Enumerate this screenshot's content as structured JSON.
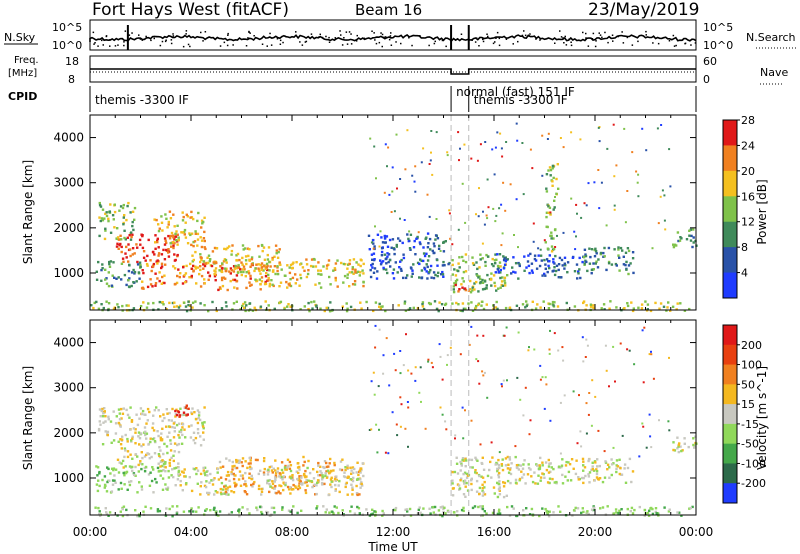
{
  "header": {
    "station": "Fort Hays West (fitACF)",
    "beam": "Beam 16",
    "date": "23/May/2019"
  },
  "top_panels": {
    "nsky_label": "N.Sky",
    "nsky_tick_top": "10^5",
    "nsky_tick_bottom": "10^0",
    "nsearch_label": "N.Search",
    "freq_label_line1": "Freq.",
    "freq_label_line2": "[MHz]",
    "freq_tick_top": "18",
    "freq_tick_bottom": "8",
    "nave_tick_top": "60",
    "nave_tick_bottom": "0",
    "nave_label": "Nave",
    "cpid_label": "CPID",
    "cpid_segments": [
      {
        "label": "themis -3300 IF",
        "start_h": 0.0,
        "end_h": 14.3
      },
      {
        "label": "normal (fast) 151 IF",
        "start_h": 14.3,
        "end_h": 15.0
      },
      {
        "label": "themis -3300 IF",
        "start_h": 15.0,
        "end_h": 24.0
      }
    ]
  },
  "chart_data": [
    {
      "type": "heatmap",
      "name": "power",
      "ylabel": "Slant Range [km]",
      "xlabel": "Time UT",
      "xlim": [
        0,
        24
      ],
      "ylim": [
        180,
        4500
      ],
      "yticks": [
        1000,
        2000,
        3000,
        4000
      ],
      "xticks": [
        "00:00",
        "04:00",
        "08:00",
        "12:00",
        "16:00",
        "20:00",
        "00:00"
      ],
      "colorbar_label": "Power [dB]",
      "colorbar_ticks": [
        "4",
        "8",
        "12",
        "16",
        "20",
        "24",
        "28"
      ],
      "colorbar_colors": [
        "#1f3cff",
        "#2952a8",
        "#3f8a5a",
        "#7fc24a",
        "#f4c020",
        "#f08020",
        "#e01818"
      ],
      "regions": [
        {
          "t0": 0.3,
          "t1": 1.8,
          "r0": 1750,
          "r1": 2600,
          "level": 3
        },
        {
          "t0": 1.0,
          "t1": 3.5,
          "r0": 1250,
          "r1": 1900,
          "level": 6
        },
        {
          "t0": 2.5,
          "t1": 4.5,
          "r0": 1600,
          "r1": 2400,
          "level": 4
        },
        {
          "t0": 0.2,
          "t1": 2.0,
          "r0": 700,
          "r1": 1300,
          "level": 2
        },
        {
          "t0": 2.0,
          "t1": 7.0,
          "r0": 650,
          "r1": 1250,
          "level": 5
        },
        {
          "t0": 4.0,
          "t1": 7.5,
          "r0": 1000,
          "r1": 1650,
          "level": 4
        },
        {
          "t0": 6.5,
          "t1": 10.8,
          "r0": 700,
          "r1": 1350,
          "level": 4
        },
        {
          "t0": 11.0,
          "t1": 14.2,
          "r0": 900,
          "r1": 1900,
          "level": 1
        },
        {
          "t0": 14.3,
          "t1": 16.5,
          "r0": 600,
          "r1": 1450,
          "level": 3
        },
        {
          "t0": 14.4,
          "t1": 15.0,
          "r0": 500,
          "r1": 800,
          "level": 5
        },
        {
          "t0": 16.0,
          "t1": 19.5,
          "r0": 900,
          "r1": 1450,
          "level": 1
        },
        {
          "t0": 19.5,
          "t1": 21.5,
          "r0": 1000,
          "r1": 1600,
          "level": 2
        },
        {
          "t0": 23.0,
          "t1": 24.0,
          "r0": 1600,
          "r1": 2000,
          "level": 2
        },
        {
          "t0": 0.0,
          "t1": 24.0,
          "r0": 180,
          "r1": 400,
          "level": 3
        },
        {
          "t0": 18.0,
          "t1": 18.5,
          "r0": 1500,
          "r1": 3500,
          "level": 3
        }
      ]
    },
    {
      "type": "heatmap",
      "name": "velocity",
      "ylabel": "Slant Range [km]",
      "xlabel": "Time UT",
      "xlim": [
        0,
        24
      ],
      "ylim": [
        180,
        4500
      ],
      "yticks": [
        1000,
        2000,
        3000,
        4000
      ],
      "xticks": [
        "00:00",
        "04:00",
        "08:00",
        "12:00",
        "16:00",
        "20:00",
        "00:00"
      ],
      "colorbar_label": "Velocity [m s^-1]",
      "colorbar_ticks": [
        "200",
        "100",
        "50",
        "15",
        "-15",
        "-50",
        "-100",
        "-200"
      ],
      "colorbar_colors": [
        "#1f3cff",
        "#2c6a4a",
        "#44a84a",
        "#90d85a",
        "#c8c8c0",
        "#f4b820",
        "#f08020",
        "#e84010",
        "#e01818"
      ],
      "regions": [
        {
          "t0": 0.3,
          "t1": 4.5,
          "r0": 1750,
          "r1": 2600,
          "level": 4
        },
        {
          "t0": 1.0,
          "t1": 3.5,
          "r0": 1250,
          "r1": 1900,
          "level": 4
        },
        {
          "t0": 0.2,
          "t1": 3.0,
          "r0": 700,
          "r1": 1300,
          "level": 3
        },
        {
          "t0": 3.0,
          "t1": 5.5,
          "r0": 650,
          "r1": 1300,
          "level": 4
        },
        {
          "t0": 5.0,
          "t1": 10.8,
          "r0": 650,
          "r1": 1500,
          "level": 5
        },
        {
          "t0": 7.0,
          "t1": 10.8,
          "r0": 800,
          "r1": 1300,
          "level": 4
        },
        {
          "t0": 3.3,
          "t1": 4.0,
          "r0": 2350,
          "r1": 2650,
          "level": 8
        },
        {
          "t0": 14.3,
          "t1": 16.5,
          "r0": 600,
          "r1": 1500,
          "level": 4
        },
        {
          "t0": 16.0,
          "t1": 21.5,
          "r0": 900,
          "r1": 1500,
          "level": 4
        },
        {
          "t0": 23.0,
          "t1": 24.0,
          "r0": 1600,
          "r1": 2000,
          "level": 4
        },
        {
          "t0": 0.0,
          "t1": 24.0,
          "r0": 180,
          "r1": 400,
          "level": 3
        }
      ]
    }
  ]
}
